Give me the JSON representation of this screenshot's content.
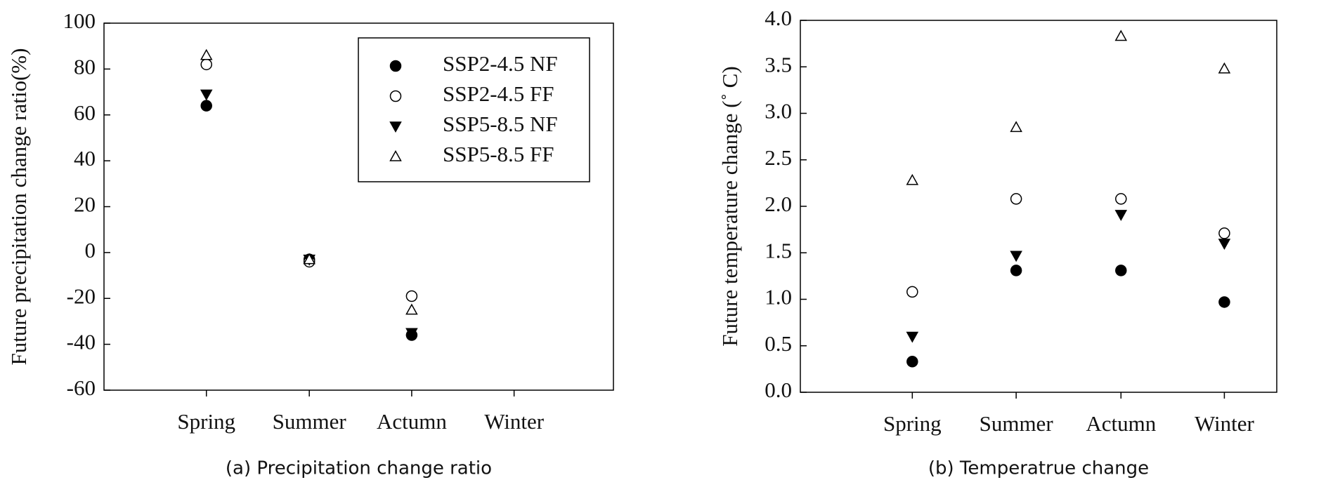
{
  "chart_data": [
    {
      "type": "scatter",
      "y_label": "Future precipitation change ratio(%)",
      "caption": "(a) Precipitation change ratio",
      "categories": [
        "Spring",
        "Summer",
        "Actumn",
        "Winter"
      ],
      "ylim": [
        -60,
        100
      ],
      "yticks": [
        -60,
        -40,
        -20,
        0,
        20,
        40,
        60,
        80,
        100
      ],
      "legend": "upper right",
      "series": [
        {
          "name": "SSP2-4.5 NF",
          "marker": "circle-filled",
          "color": "#000000",
          "values": [
            64,
            -3,
            -36,
            null
          ]
        },
        {
          "name": "SSP2-4.5 FF",
          "marker": "circle-open",
          "color": "#000000",
          "values": [
            82,
            -4,
            -19,
            null
          ]
        },
        {
          "name": "SSP5-8.5 NF",
          "marker": "triangle-down-filled",
          "color": "#000000",
          "values": [
            69,
            -3,
            -35,
            null
          ]
        },
        {
          "name": "SSP5-8.5 FF",
          "marker": "triangle-up-open",
          "color": "#000000",
          "values": [
            86,
            -3,
            -25,
            null
          ]
        }
      ]
    },
    {
      "type": "scatter",
      "y_label": "Future temperature change (˚ C)",
      "caption": "(b) Temperatrue change",
      "categories": [
        "Spring",
        "Summer",
        "Actumn",
        "Winter"
      ],
      "ylim": [
        0,
        4
      ],
      "yticks": [
        {
          "value": 0,
          "label": "0.0"
        },
        0.5,
        {
          "value": 1,
          "label": "1.0"
        },
        1.5,
        {
          "value": 2,
          "label": "2.0"
        },
        2.5,
        {
          "value": 3,
          "label": "3.0"
        },
        3.5,
        {
          "value": 4,
          "label": "4.0"
        }
      ],
      "series": [
        {
          "marker": "circle-filled",
          "color": "#000000",
          "values": [
            0.33,
            1.31,
            1.31,
            0.97
          ]
        },
        {
          "marker": "circle-open",
          "color": "#000000",
          "values": [
            1.08,
            2.08,
            2.08,
            1.71
          ]
        },
        {
          "marker": "triangle-down-filled",
          "color": "#000000",
          "values": [
            0.6,
            1.47,
            1.91,
            1.6
          ]
        },
        {
          "marker": "triangle-up-open",
          "color": "#000000",
          "values": [
            2.28,
            2.85,
            3.83,
            3.48
          ]
        }
      ]
    }
  ]
}
